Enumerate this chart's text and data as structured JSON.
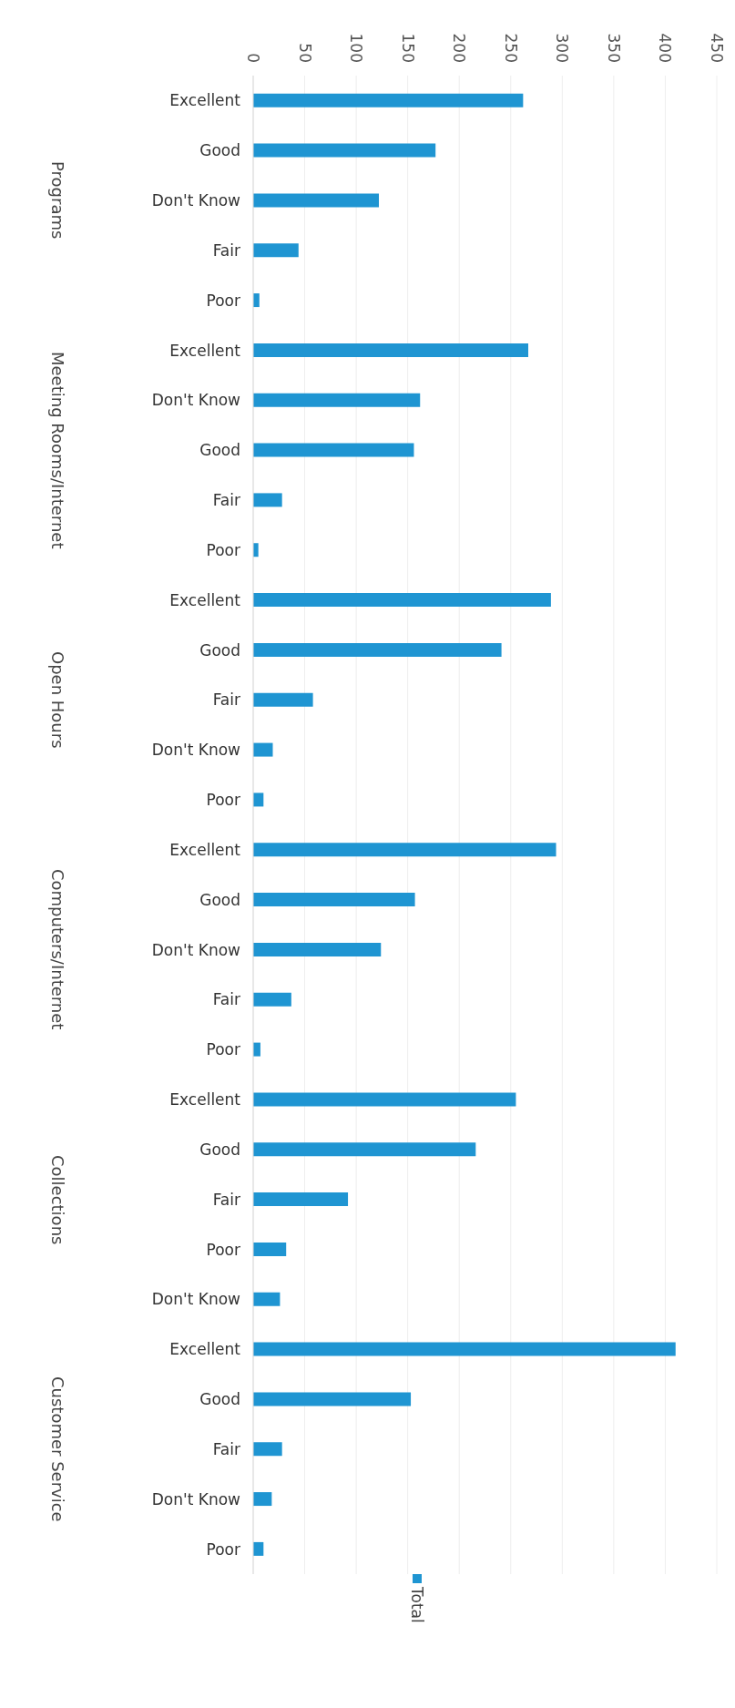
{
  "chart_data": {
    "type": "bar",
    "orientation": "horizontal",
    "categories": [
      "Excellent",
      "Good",
      "Don't Know",
      "Fair",
      "Poor",
      "Excellent",
      "Don't Know",
      "Good",
      "Fair",
      "Poor",
      "Excellent",
      "Good",
      "Fair",
      "Don't Know",
      "Poor",
      "Excellent",
      "Good",
      "Don't Know",
      "Fair",
      "Poor",
      "Excellent",
      "Good",
      "Fair",
      "Poor",
      "Don't Know",
      "Excellent",
      "Good",
      "Fair",
      "Don't Know",
      "Poor"
    ],
    "series": [
      {
        "name": "Total",
        "color": "#1f95d2",
        "values": [
          262,
          177,
          122,
          44,
          6,
          267,
          162,
          156,
          28,
          5,
          289,
          241,
          58,
          19,
          10,
          294,
          157,
          124,
          37,
          7,
          255,
          216,
          92,
          32,
          26,
          410,
          153,
          28,
          18,
          10
        ]
      }
    ],
    "annotations": [
      "Programs",
      "Meeting Rooms/Internet",
      "Open Hours",
      "Computers/Internet",
      "Collections",
      "Customer Service"
    ],
    "xlim": [
      0,
      450
    ],
    "xticks": [
      0,
      50,
      100,
      150,
      200,
      250,
      300,
      350,
      400,
      450
    ],
    "grid": "x",
    "legend": "bottom"
  }
}
